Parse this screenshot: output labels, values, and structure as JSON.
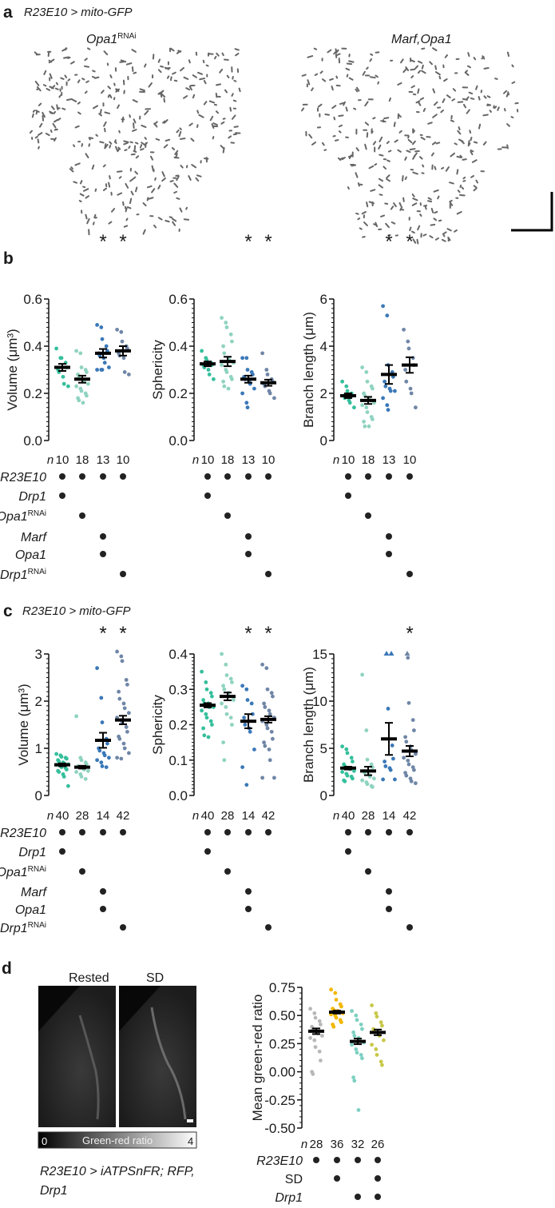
{
  "panel_labels": {
    "a": "a",
    "b": "b",
    "c": "c",
    "d": "d"
  },
  "panel_a": {
    "header": "R23E10 > mito-GFP",
    "image_titles": [
      {
        "main": "Opa1",
        "sup": "RNAi"
      },
      {
        "main": "Marf,Opa1",
        "sup": ""
      }
    ]
  },
  "panel_c_header": "R23E10 > mito-GFP",
  "n_label": "n",
  "significance_mark": "*",
  "genotype_rows_bc": [
    {
      "main": "R23E10",
      "sup": "",
      "dots": [
        1,
        1,
        1,
        1
      ]
    },
    {
      "main": "Drp1",
      "sup": "",
      "dots": [
        1,
        0,
        0,
        0
      ]
    },
    {
      "main": "Opa1",
      "sup": "RNAi",
      "dots": [
        0,
        1,
        0,
        0
      ]
    },
    {
      "main": "Marf",
      "sup": "",
      "dots": [
        0,
        0,
        1,
        0
      ]
    },
    {
      "main": "Opa1",
      "sup": "",
      "dots": [
        0,
        0,
        1,
        0
      ]
    },
    {
      "main": "Drp1",
      "sup": "RNAi",
      "dots": [
        0,
        0,
        0,
        1
      ]
    }
  ],
  "panel_d": {
    "image_titles": [
      "Rested",
      "SD"
    ],
    "colorbar": {
      "min": "0",
      "label": "Green-red ratio",
      "max": "4"
    },
    "caption_line1": "R23E10 > iATPSnFR; RFP,",
    "caption_line2": "Drp1",
    "genotype_rows": [
      {
        "main": "R23E10",
        "italic": true,
        "dots": [
          1,
          1,
          1,
          1
        ]
      },
      {
        "main": "SD",
        "italic": false,
        "dots": [
          0,
          1,
          0,
          1
        ]
      },
      {
        "main": "Drp1",
        "italic": true,
        "dots": [
          0,
          0,
          1,
          1
        ]
      }
    ]
  },
  "colors": {
    "bc": [
      "#35bf9c",
      "#8fd3c0",
      "#3a78b8",
      "#6f86a6"
    ],
    "d": [
      "#b8b8b8",
      "#f2b705",
      "#7dd0c2",
      "#c8c84a"
    ],
    "mean_bar": "#000000"
  },
  "chart_data": [
    {
      "id": "b-volume",
      "type": "scatter",
      "ylabel": "Volume (μm³)",
      "ylim": [
        0,
        0.6
      ],
      "ticks": [
        "0.0",
        "0.2",
        "0.4",
        "0.6"
      ],
      "tick_values": [
        0,
        0.2,
        0.4,
        0.6
      ],
      "n": [
        "10",
        "18",
        "13",
        "10"
      ],
      "significant": [
        false,
        false,
        true,
        true
      ],
      "mean": [
        0.31,
        0.26,
        0.37,
        0.38
      ],
      "sem": [
        0.015,
        0.015,
        0.018,
        0.02
      ],
      "points": [
        [
          0.39,
          0.35,
          0.35,
          0.33,
          0.31,
          0.3,
          0.29,
          0.27,
          0.24,
          0.23
        ],
        [
          0.38,
          0.37,
          0.31,
          0.3,
          0.29,
          0.28,
          0.27,
          0.26,
          0.25,
          0.24,
          0.23,
          0.22,
          0.21,
          0.2,
          0.19,
          0.18,
          0.17,
          0.16
        ],
        [
          0.49,
          0.48,
          0.43,
          0.4,
          0.38,
          0.37,
          0.36,
          0.35,
          0.33,
          0.31,
          0.3,
          0.3,
          0.3
        ],
        [
          0.47,
          0.46,
          0.42,
          0.4,
          0.39,
          0.37,
          0.36,
          0.35,
          0.29,
          0.28
        ]
      ]
    },
    {
      "id": "b-sphericity",
      "type": "scatter",
      "ylabel": "Sphericity",
      "ylim": [
        0,
        0.6
      ],
      "ticks": [
        "0.0",
        "0.2",
        "0.4",
        "0.6"
      ],
      "tick_values": [
        0,
        0.2,
        0.4,
        0.6
      ],
      "n": [
        "10",
        "18",
        "13",
        "10"
      ],
      "significant": [
        false,
        false,
        true,
        true
      ],
      "mean": [
        0.325,
        0.335,
        0.26,
        0.245
      ],
      "sem": [
        0.01,
        0.02,
        0.015,
        0.013
      ],
      "points": [
        [
          0.38,
          0.35,
          0.34,
          0.33,
          0.32,
          0.32,
          0.31,
          0.3,
          0.28,
          0.26
        ],
        [
          0.52,
          0.5,
          0.48,
          0.45,
          0.42,
          0.4,
          0.37,
          0.35,
          0.34,
          0.33,
          0.32,
          0.3,
          0.29,
          0.27,
          0.26,
          0.25,
          0.23,
          0.22
        ],
        [
          0.35,
          0.35,
          0.3,
          0.29,
          0.28,
          0.27,
          0.26,
          0.25,
          0.24,
          0.22,
          0.2,
          0.16,
          0.14
        ],
        [
          0.37,
          0.3,
          0.28,
          0.26,
          0.25,
          0.24,
          0.23,
          0.21,
          0.2,
          0.18
        ]
      ]
    },
    {
      "id": "b-branch",
      "type": "scatter",
      "ylabel": "Branch length (μm)",
      "ylim": [
        0,
        6
      ],
      "ticks": [
        "0",
        "2",
        "4",
        "6"
      ],
      "tick_values": [
        0,
        2,
        4,
        6
      ],
      "n": [
        "10",
        "18",
        "13",
        "10"
      ],
      "significant": [
        false,
        false,
        true,
        true
      ],
      "mean": [
        1.9,
        1.7,
        2.8,
        3.2
      ],
      "sem": [
        0.1,
        0.15,
        0.4,
        0.33
      ],
      "points": [
        [
          2.5,
          2.3,
          2.1,
          2.0,
          1.9,
          1.9,
          1.8,
          1.7,
          1.6,
          1.4
        ],
        [
          3.1,
          2.9,
          2.5,
          2.3,
          2.2,
          2.0,
          1.9,
          1.8,
          1.7,
          1.6,
          1.5,
          1.4,
          1.2,
          1.0,
          0.9,
          0.8,
          0.6,
          0.6
        ],
        [
          5.7,
          5.3,
          3.2,
          2.9,
          2.7,
          2.5,
          2.3,
          2.2,
          2.1,
          2.1,
          1.8,
          1.5,
          1.3
        ],
        [
          4.7,
          4.2,
          3.9,
          3.5,
          3.2,
          3.0,
          2.5,
          2.2,
          2.0,
          1.4
        ]
      ]
    },
    {
      "id": "c-volume",
      "type": "scatter",
      "ylabel": "Volume (μm³)",
      "ylim": [
        0,
        3
      ],
      "ticks": [
        "0",
        "1",
        "2",
        "3"
      ],
      "tick_values": [
        0,
        1,
        2,
        3
      ],
      "n": [
        "40",
        "28",
        "14",
        "42"
      ],
      "significant": [
        false,
        false,
        true,
        true
      ],
      "mean": [
        0.65,
        0.6,
        1.17,
        1.6
      ],
      "sem": [
        0.03,
        0.03,
        0.16,
        0.09
      ],
      "points": [
        [
          0.88,
          0.85,
          0.82,
          0.8,
          0.78,
          0.75,
          0.72,
          0.7,
          0.68,
          0.66,
          0.65,
          0.63,
          0.6,
          0.58,
          0.55,
          0.52,
          0.5,
          0.45,
          0.4,
          0.2
        ],
        [
          1.68,
          0.8,
          0.75,
          0.7,
          0.66,
          0.62,
          0.6,
          0.58,
          0.55,
          0.52,
          0.5,
          0.45,
          0.4,
          0.35
        ],
        [
          2.7,
          2.07,
          1.55,
          1.2,
          1.1,
          1.0,
          0.95,
          0.9,
          0.85,
          0.8,
          0.75,
          0.7,
          0.62,
          0.6
        ],
        [
          3.05,
          2.95,
          2.85,
          2.45,
          2.35,
          2.2,
          2.05,
          1.95,
          1.85,
          1.75,
          1.65,
          1.6,
          1.55,
          1.45,
          1.35,
          1.25,
          1.2,
          1.1,
          1.0,
          0.9,
          0.8,
          0.78
        ]
      ]
    },
    {
      "id": "c-sphericity",
      "type": "scatter",
      "ylabel": "Sphericity",
      "ylim": [
        0,
        0.4
      ],
      "ticks": [
        "0.0",
        "0.1",
        "0.2",
        "0.3",
        "0.4"
      ],
      "tick_values": [
        0,
        0.1,
        0.2,
        0.3,
        0.4
      ],
      "n": [
        "40",
        "28",
        "14",
        "42"
      ],
      "significant": [
        false,
        false,
        true,
        true
      ],
      "mean": [
        0.255,
        0.28,
        0.21,
        0.215
      ],
      "sem": [
        0.006,
        0.011,
        0.02,
        0.009
      ],
      "points": [
        [
          0.35,
          0.32,
          0.3,
          0.29,
          0.28,
          0.27,
          0.26,
          0.26,
          0.25,
          0.25,
          0.24,
          0.23,
          0.22,
          0.21,
          0.2,
          0.19,
          0.17,
          0.165
        ],
        [
          0.4,
          0.37,
          0.34,
          0.33,
          0.32,
          0.31,
          0.3,
          0.29,
          0.28,
          0.27,
          0.26,
          0.25,
          0.23,
          0.22,
          0.2,
          0.15,
          0.1
        ],
        [
          0.31,
          0.3,
          0.27,
          0.26,
          0.23,
          0.22,
          0.2,
          0.19,
          0.18,
          0.13,
          0.08,
          0.03
        ],
        [
          0.37,
          0.36,
          0.3,
          0.29,
          0.28,
          0.26,
          0.25,
          0.24,
          0.23,
          0.22,
          0.21,
          0.2,
          0.19,
          0.18,
          0.16,
          0.15,
          0.14,
          0.13,
          0.1,
          0.05,
          0.05
        ]
      ]
    },
    {
      "id": "c-branch",
      "type": "scatter",
      "ylabel": "Branch length (μm)",
      "ylim": [
        0,
        15
      ],
      "ticks": [
        "0",
        "5",
        "10",
        "15"
      ],
      "tick_values": [
        0,
        5,
        10,
        15
      ],
      "n": [
        "40",
        "28",
        "14",
        "42"
      ],
      "significant": [
        false,
        false,
        false,
        true
      ],
      "mean": [
        2.9,
        2.6,
        6.0,
        4.7
      ],
      "sem": [
        0.15,
        0.45,
        1.7,
        0.55
      ],
      "points": [
        [
          5.2,
          4.9,
          4.5,
          4.0,
          3.6,
          3.3,
          3.1,
          2.9,
          2.8,
          2.6,
          2.5,
          2.3,
          2.1,
          2.0,
          1.8,
          1.6,
          1.5
        ],
        [
          12.8,
          6.9,
          3.8,
          3.3,
          3.0,
          2.6,
          2.4,
          2.2,
          2.0,
          1.8,
          1.6,
          1.4,
          1.2,
          1.0,
          0.9
        ],
        [
          15,
          15,
          9.2,
          5.3,
          3.9,
          3.6,
          3.1,
          2.9,
          2.7,
          1.7,
          1.7
        ],
        [
          15,
          14.6,
          9.8,
          8.0,
          6.9,
          6.2,
          5.7,
          5.2,
          4.8,
          4.4,
          4.0,
          3.7,
          3.3,
          3.0,
          2.7,
          2.4,
          2.1,
          1.8,
          1.5,
          1.3
        ]
      ],
      "clipped_points": [
        [],
        [],
        [
          true,
          true
        ],
        [
          true
        ]
      ]
    },
    {
      "id": "d-ratio",
      "type": "scatter",
      "ylabel": "Mean green-red ratio",
      "ylim": [
        -0.5,
        0.75
      ],
      "ticks": [
        "-0.50",
        "-0.25",
        "0.00",
        "0.25",
        "0.50",
        "0.75"
      ],
      "tick_values": [
        -0.5,
        -0.25,
        0,
        0.25,
        0.5,
        0.75
      ],
      "n": [
        "28",
        "36",
        "32",
        "26"
      ],
      "significant": [
        false,
        false,
        false,
        false
      ],
      "mean": [
        0.36,
        0.53,
        0.27,
        0.35
      ],
      "sem": [
        0.025,
        0.013,
        0.025,
        0.025
      ],
      "points": [
        [
          0.56,
          0.52,
          0.48,
          0.45,
          0.42,
          0.4,
          0.38,
          0.36,
          0.34,
          0.32,
          0.3,
          0.28,
          0.22,
          0.18,
          0.1,
          0.0,
          -0.02
        ],
        [
          0.73,
          0.7,
          0.64,
          0.6,
          0.58,
          0.56,
          0.55,
          0.54,
          0.53,
          0.52,
          0.51,
          0.5,
          0.48,
          0.46,
          0.44,
          0.42,
          0.4
        ],
        [
          0.54,
          0.5,
          0.46,
          0.42,
          0.38,
          0.35,
          0.32,
          0.3,
          0.28,
          0.26,
          0.24,
          0.2,
          0.17,
          0.15,
          0.12,
          -0.05,
          -0.08,
          -0.34
        ],
        [
          0.59,
          0.52,
          0.49,
          0.44,
          0.41,
          0.38,
          0.36,
          0.34,
          0.32,
          0.28,
          0.24,
          0.2,
          0.15,
          0.09,
          0.06
        ]
      ]
    }
  ]
}
